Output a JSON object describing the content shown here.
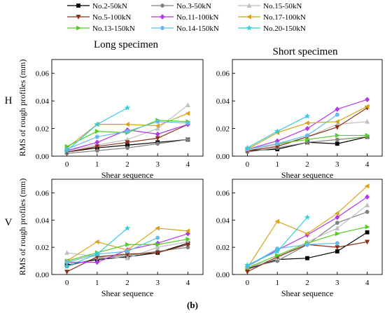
{
  "figure": {
    "label": "(b)",
    "col_titles": [
      "Long specimen",
      "Short specimen"
    ],
    "row_labels": [
      "H",
      "V"
    ]
  },
  "legend": {
    "placement": "top-center",
    "entries": [
      {
        "name": "No.2-50kN",
        "color": "#000000",
        "marker": "square"
      },
      {
        "name": "No.3-50kN",
        "color": "#808080",
        "marker": "circle"
      },
      {
        "name": "No.15-50kN",
        "color": "#bfbfbf",
        "marker": "triangle"
      },
      {
        "name": "No.5-100kN",
        "color": "#8b2e16",
        "marker": "triangle-down"
      },
      {
        "name": "No.11-100kN",
        "color": "#b535e8",
        "marker": "diamond"
      },
      {
        "name": "No.17-100kN",
        "color": "#d8a31a",
        "marker": "triangle-left"
      },
      {
        "name": "No.13-150kN",
        "color": "#55cc22",
        "marker": "triangle-right"
      },
      {
        "name": "No.14-150kN",
        "color": "#66bbee",
        "marker": "hexagon"
      },
      {
        "name": "No.20-150kN",
        "color": "#33ccdd",
        "marker": "star"
      }
    ]
  },
  "chart_data": [
    {
      "type": "line",
      "panel": "H-long",
      "xlabel": "Shear sequence",
      "ylabel": "RMS of rough profiles (mm)",
      "x": [
        0,
        1,
        2,
        3,
        4
      ],
      "xlim": [
        -0.5,
        4.5
      ],
      "ylim": [
        0,
        0.07
      ],
      "xticks": [
        "0",
        "1",
        "2",
        "3",
        "4"
      ],
      "yticks": [
        "0.00",
        "0.02",
        "0.04",
        "0.06"
      ],
      "series": [
        {
          "name": "No.2-50kN",
          "values": [
            0.003,
            0.006,
            0.008,
            0.01,
            0.012
          ]
        },
        {
          "name": "No.3-50kN",
          "values": [
            0.002,
            0.004,
            0.006,
            0.009,
            0.012
          ]
        },
        {
          "name": "No.15-50kN",
          "values": [
            0.004,
            0.008,
            0.012,
            0.02,
            0.037
          ]
        },
        {
          "name": "No.5-100kN",
          "values": [
            0.003,
            0.007,
            0.01,
            0.013,
            0.023
          ]
        },
        {
          "name": "No.11-100kN",
          "values": [
            0.004,
            0.01,
            0.019,
            0.016,
            0.023
          ]
        },
        {
          "name": "No.17-100kN",
          "values": [
            0.006,
            0.023,
            0.023,
            0.022,
            0.031
          ]
        },
        {
          "name": "No.13-150kN",
          "values": [
            0.007,
            0.018,
            0.017,
            0.026,
            0.025
          ]
        },
        {
          "name": "No.14-150kN",
          "values": [
            0.005,
            0.014,
            0.018,
            0.025,
            0.024
          ]
        },
        {
          "name": "No.20-150kN",
          "values": [
            0.004,
            0.023,
            0.035,
            null,
            null
          ]
        }
      ]
    },
    {
      "type": "line",
      "panel": "H-short",
      "xlabel": "Shear sequence",
      "ylabel": "",
      "x": [
        0,
        1,
        2,
        3,
        4
      ],
      "xlim": [
        -0.5,
        4.5
      ],
      "ylim": [
        0,
        0.07
      ],
      "xticks": [
        "0",
        "1",
        "2",
        "3",
        "4"
      ],
      "yticks": [
        "0.00",
        "0.02",
        "0.04",
        "0.06"
      ],
      "series": [
        {
          "name": "No.2-50kN",
          "values": [
            0.004,
            0.005,
            0.01,
            0.009,
            0.014
          ]
        },
        {
          "name": "No.3-50kN",
          "values": [
            0.003,
            0.006,
            0.01,
            0.012,
            0.014
          ]
        },
        {
          "name": "No.15-50kN",
          "values": [
            0.005,
            0.008,
            0.014,
            0.023,
            0.025
          ]
        },
        {
          "name": "No.5-100kN",
          "values": [
            0.004,
            0.007,
            0.014,
            0.021,
            0.035
          ]
        },
        {
          "name": "No.11-100kN",
          "values": [
            0.005,
            0.011,
            0.02,
            0.034,
            0.041
          ]
        },
        {
          "name": "No.17-100kN",
          "values": [
            0.005,
            0.017,
            0.024,
            0.025,
            0.036
          ]
        },
        {
          "name": "No.13-150kN",
          "values": [
            0.005,
            0.009,
            0.012,
            0.015,
            0.015
          ]
        },
        {
          "name": "No.14-150kN",
          "values": [
            0.005,
            0.009,
            0.015,
            0.03,
            null
          ]
        },
        {
          "name": "No.20-150kN",
          "values": [
            0.006,
            0.018,
            0.029,
            null,
            null
          ]
        }
      ]
    },
    {
      "type": "line",
      "panel": "V-long",
      "xlabel": "Shear sequence",
      "ylabel": "RMS of rough profiles (mm)",
      "x": [
        0,
        1,
        2,
        3,
        4
      ],
      "xlim": [
        -0.5,
        4.5
      ],
      "ylim": [
        0,
        0.07
      ],
      "xticks": [
        "0",
        "1",
        "2",
        "3",
        "4"
      ],
      "yticks": [
        "0.00",
        "0.02",
        "0.04",
        "0.06"
      ],
      "series": [
        {
          "name": "No.2-50kN",
          "values": [
            0.007,
            0.011,
            0.013,
            0.016,
            0.023
          ]
        },
        {
          "name": "No.3-50kN",
          "values": [
            0.006,
            0.012,
            0.014,
            0.017,
            0.02
          ]
        },
        {
          "name": "No.15-50kN",
          "values": [
            0.016,
            0.013,
            0.012,
            0.02,
            0.024
          ]
        },
        {
          "name": "No.5-100kN",
          "values": [
            0.002,
            0.013,
            0.015,
            0.016,
            0.022
          ]
        },
        {
          "name": "No.11-100kN",
          "values": [
            0.009,
            0.009,
            0.018,
            0.023,
            0.03
          ]
        },
        {
          "name": "No.17-100kN",
          "values": [
            0.01,
            0.024,
            0.018,
            0.034,
            0.032
          ]
        },
        {
          "name": "No.13-150kN",
          "values": [
            0.01,
            0.016,
            0.022,
            0.022,
            0.026
          ]
        },
        {
          "name": "No.14-150kN",
          "values": [
            0.009,
            0.015,
            0.017,
            0.027,
            null
          ]
        },
        {
          "name": "No.20-150kN",
          "values": [
            0.006,
            0.015,
            0.034,
            null,
            null
          ]
        }
      ]
    },
    {
      "type": "line",
      "panel": "V-short",
      "xlabel": "Shear sequence",
      "ylabel": "",
      "x": [
        0,
        1,
        2,
        3,
        4
      ],
      "xlim": [
        -0.5,
        4.5
      ],
      "ylim": [
        0,
        0.07
      ],
      "xticks": [
        "0",
        "1",
        "2",
        "3",
        "4"
      ],
      "yticks": [
        "0.00",
        "0.02",
        "0.04",
        "0.06"
      ],
      "series": [
        {
          "name": "No.2-50kN",
          "values": [
            0.004,
            0.011,
            0.012,
            0.017,
            0.031
          ]
        },
        {
          "name": "No.3-50kN",
          "values": [
            0.005,
            0.01,
            0.022,
            0.038,
            0.046
          ]
        },
        {
          "name": "No.15-50kN",
          "values": [
            0.005,
            0.012,
            0.024,
            0.034,
            0.051
          ]
        },
        {
          "name": "No.5-100kN",
          "values": [
            0.002,
            0.013,
            0.022,
            0.02,
            0.024
          ]
        },
        {
          "name": "No.11-100kN",
          "values": [
            0.006,
            0.018,
            0.029,
            0.042,
            0.057
          ]
        },
        {
          "name": "No.17-100kN",
          "values": [
            0.005,
            0.039,
            0.03,
            0.045,
            0.065
          ]
        },
        {
          "name": "No.13-150kN",
          "values": [
            0.005,
            0.014,
            0.023,
            0.03,
            0.035
          ]
        },
        {
          "name": "No.14-150kN",
          "values": [
            0.006,
            0.019,
            0.022,
            0.023,
            null
          ]
        },
        {
          "name": "No.20-150kN",
          "values": [
            0.007,
            0.017,
            0.042,
            null,
            null
          ]
        }
      ]
    }
  ]
}
